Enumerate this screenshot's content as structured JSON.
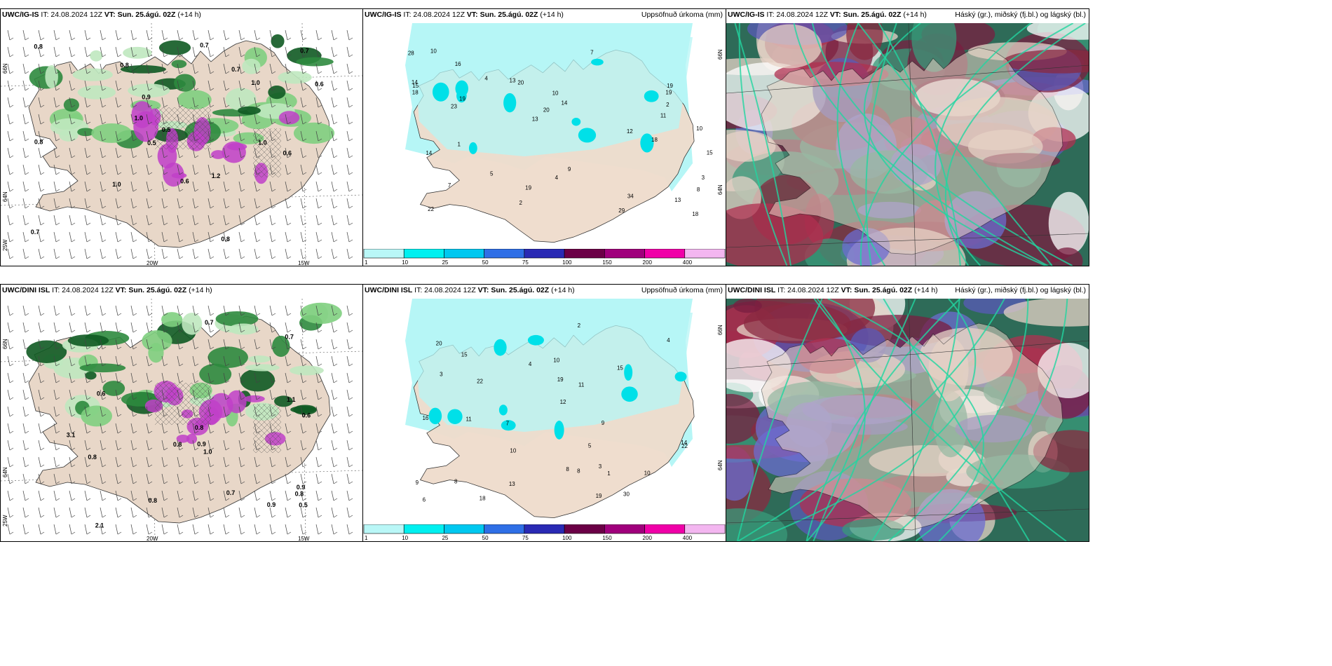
{
  "panels": [
    {
      "model": "UWC/IG-IS",
      "it": "IT: 24.08.2024 12Z",
      "vt": "VT: Sun. 25.ágú. 02Z",
      "lead": "(+14 h)",
      "right": "",
      "kind": "precip"
    },
    {
      "model": "UWC/IG-IS",
      "it": "IT: 24.08.2024 12Z",
      "vt": "VT: Sun. 25.ágú. 02Z",
      "lead": "(+14 h)",
      "right": "Uppsöfnuð úrkoma (mm)",
      "kind": "accum"
    },
    {
      "model": "UWC/IG-IS",
      "it": "IT: 24.08.2024 12Z",
      "vt": "VT: Sun. 25.ágú. 02Z",
      "lead": "(+14 h)",
      "right": "Háský (gr.), miðský (fj.bl.) og lágský (bl.)",
      "kind": "cloud"
    },
    {
      "model": "UWC/DINI ISL",
      "it": "IT: 24.08.2024 12Z",
      "vt": "VT: Sun. 25.ágú. 02Z",
      "lead": "(+14 h)",
      "right": "",
      "kind": "precip"
    },
    {
      "model": "UWC/DINI ISL",
      "it": "IT: 24.08.2024 12Z",
      "vt": "VT: Sun. 25.ágú. 02Z",
      "lead": "(+14 h)",
      "right": "Uppsöfnuð úrkoma (mm)",
      "kind": "accum"
    },
    {
      "model": "UWC/DINI ISL",
      "it": "IT: 24.08.2024 12Z",
      "vt": "VT: Sun. 25.ágú. 02Z",
      "lead": "(+14 h)",
      "right": "Háský (gr.), miðský (fj.bl.) og lágský (bl.)",
      "kind": "cloud"
    }
  ],
  "axis_labels": {
    "lat66": "66N",
    "lat64": "64N",
    "lon25": "25W",
    "lon20": "20W",
    "lon15": "15W"
  },
  "legend": {
    "ticks": [
      "1",
      "10",
      "25",
      "50",
      "75",
      "100",
      "150",
      "200",
      "400"
    ],
    "colors": [
      "#b9f7f7",
      "#00f0f0",
      "#00c8f0",
      "#2f6fe6",
      "#2a2ab4",
      "#6b0046",
      "#a0007c",
      "#f000a8",
      "#f3b6f0"
    ]
  },
  "precip_labels_top": [
    "0.8",
    "0.7",
    "0.8",
    "1.0",
    "0.5",
    "0.6",
    "0.7",
    "1.0",
    "0.5",
    "0.8",
    "0.6",
    "1.0",
    "1.2",
    "0.7",
    "1.0",
    "0.7",
    "0.8",
    "0.9",
    "0.6"
  ],
  "precip_labels_bottom": [
    "0.7",
    "0.6",
    "0.8",
    "1.0",
    "0.9",
    "0.8",
    "0.6",
    "0.7",
    "0.5",
    "0.8",
    "1.1",
    "0.9",
    "0.7",
    "0.8",
    "2.1",
    "3.1",
    "0.9",
    "0.8"
  ],
  "accum_labels_top": [
    "8",
    "9",
    "15",
    "18",
    "20",
    "10",
    "18",
    "19",
    "28",
    "13",
    "13",
    "10",
    "14",
    "23",
    "12",
    "14",
    "7",
    "10",
    "34",
    "14",
    "19",
    "15",
    "11",
    "13",
    "7",
    "5",
    "22",
    "4",
    "29",
    "16",
    "19",
    "20",
    "18",
    "19",
    "2",
    "3",
    "1",
    "4",
    "2"
  ],
  "accum_labels_bottom": [
    "8",
    "10",
    "15",
    "19",
    "11",
    "19",
    "9",
    "10",
    "12",
    "13",
    "7",
    "8",
    "22",
    "8",
    "14",
    "15",
    "30",
    "20",
    "9",
    "22",
    "16",
    "18",
    "4",
    "3",
    "1",
    "2",
    "5",
    "3",
    "6",
    "4",
    "10",
    "11"
  ]
}
